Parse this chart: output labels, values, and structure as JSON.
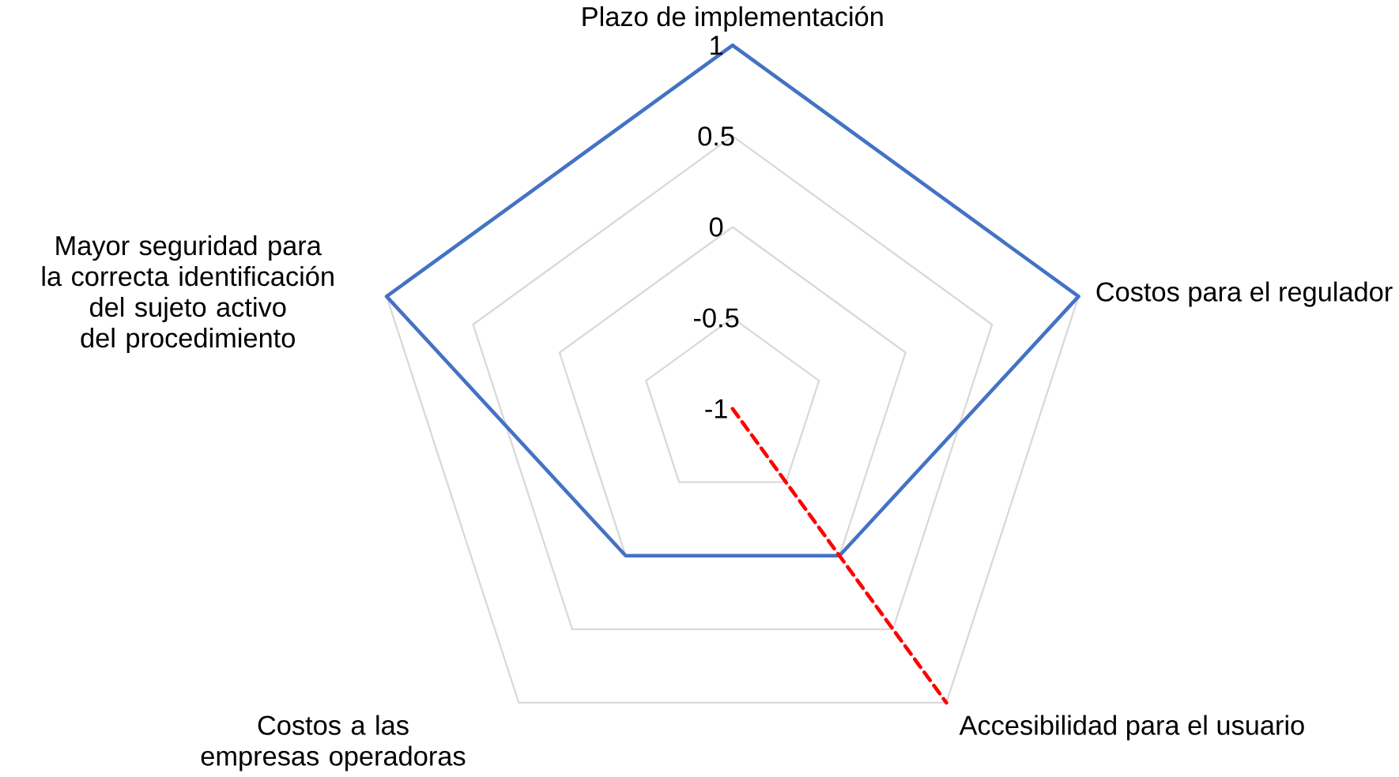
{
  "chart_data": {
    "type": "radar",
    "categories": [
      "Plazo de implementación",
      "Costos para el regulador",
      "Accesibilidad para el usuario",
      "Costos a las empresas operadoras",
      "Mayor seguridad para la correcta identificación del sujeto activo del procedimiento"
    ],
    "series": [
      {
        "color": "#4472c4",
        "line_style": "solid",
        "values": [
          1,
          1,
          0,
          0,
          1
        ]
      },
      {
        "color": "#ff0000",
        "line_style": "dashed",
        "values": [
          -1,
          -1,
          1,
          -1,
          -1
        ]
      }
    ],
    "ylim": [
      -1,
      1
    ],
    "yticks": [
      -1,
      -0.5,
      0,
      0.5,
      1
    ],
    "grid": true,
    "marker": "none"
  }
}
